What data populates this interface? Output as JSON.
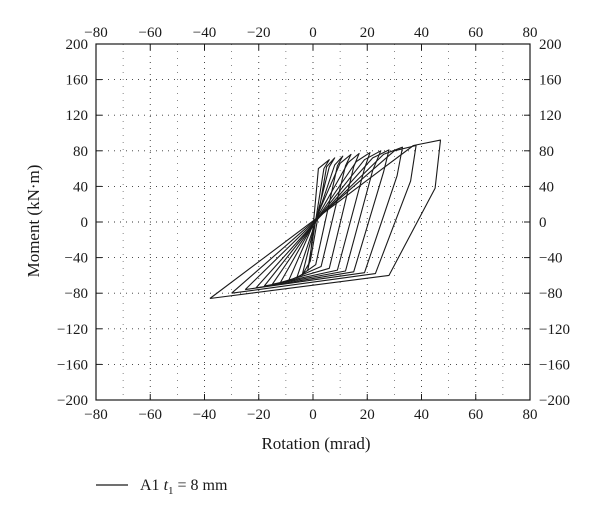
{
  "chart_data": {
    "type": "line",
    "title": "",
    "xlabel": "Rotation (mrad)",
    "ylabel": "Moment (kN·m)",
    "xlim": [
      -80,
      80
    ],
    "ylim": [
      -200,
      200
    ],
    "xticks": [
      -80,
      -60,
      -40,
      -20,
      0,
      20,
      40,
      60,
      80
    ],
    "yticks": [
      -200,
      -160,
      -120,
      -80,
      -40,
      0,
      40,
      80,
      120,
      160,
      200
    ],
    "xtick_labels": [
      "−80",
      "−60",
      "−40",
      "−20",
      "0",
      "20",
      "40",
      "60",
      "80"
    ],
    "ytick_labels": [
      "−200",
      "−160",
      "−120",
      "−80",
      "−40",
      "0",
      "40",
      "80",
      "120",
      "160",
      "200"
    ],
    "grid": true,
    "grid_style": "dotted",
    "secondary_axes": true,
    "legend_position": "bottom-left",
    "legend": {
      "prefix": "A1 ",
      "var": "t",
      "sub": "1",
      "suffix": " = 8 mm"
    },
    "series": [
      {
        "name": "A1 t1 = 8 mm",
        "color": "#1a1a1a",
        "loops": [
          {
            "x": [
              -2,
              4,
              6,
              2,
              -1,
              -2
            ],
            "y": [
              -55,
              60,
              70,
              60,
              -40,
              -55
            ]
          },
          {
            "x": [
              -4,
              6,
              8,
              5,
              -1,
              -4
            ],
            "y": [
              -60,
              62,
              72,
              62,
              -44,
              -60
            ]
          },
          {
            "x": [
              -6,
              8,
              11,
              9,
              1,
              -6
            ],
            "y": [
              -63,
              64,
              74,
              63,
              -48,
              -63
            ]
          },
          {
            "x": [
              -9,
              10,
              14,
              12,
              3,
              -9
            ],
            "y": [
              -66,
              66,
              76,
              63,
              -50,
              -66
            ]
          },
          {
            "x": [
              -12,
              13,
              17,
              15,
              6,
              -12
            ],
            "y": [
              -68,
              67,
              77,
              62,
              -52,
              -68
            ]
          },
          {
            "x": [
              -15,
              16,
              21,
              19,
              9,
              -15
            ],
            "y": [
              -70,
              68,
              78,
              60,
              -54,
              -70
            ]
          },
          {
            "x": [
              -18,
              19,
              25,
              22,
              12,
              -18
            ],
            "y": [
              -72,
              70,
              80,
              58,
              -55,
              -72
            ]
          },
          {
            "x": [
              -21,
              22,
              28,
              26,
              15,
              -21
            ],
            "y": [
              -74,
              72,
              81,
              56,
              -56,
              -74
            ]
          },
          {
            "x": [
              -25,
              26,
              33,
              31,
              19,
              -25
            ],
            "y": [
              -76,
              76,
              84,
              52,
              -57,
              -76
            ]
          },
          {
            "x": [
              -30,
              30,
              38,
              36,
              23,
              -30
            ],
            "y": [
              -80,
              80,
              86,
              46,
              -58,
              -80
            ]
          },
          {
            "x": [
              -38,
              37,
              47,
              45,
              28,
              -38
            ],
            "y": [
              -86,
              86,
              92,
              38,
              -60,
              -86
            ]
          }
        ]
      }
    ]
  }
}
